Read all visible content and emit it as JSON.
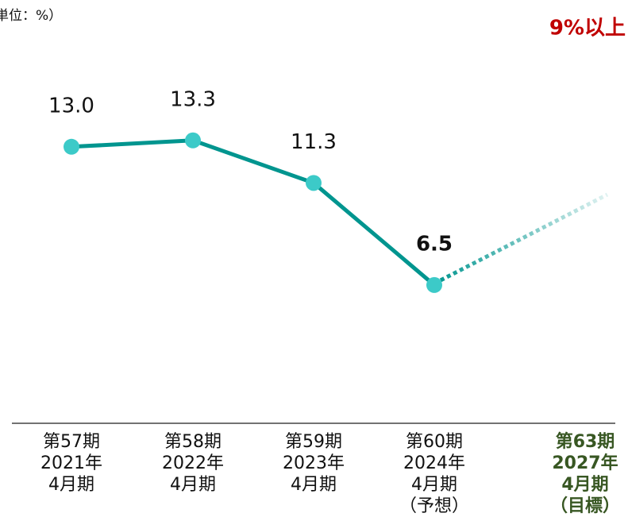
{
  "chart_data": {
    "type": "line",
    "unit_label": "単位：%）",
    "target_label": "9%以上",
    "categories": [
      [
        "第57期",
        "2021年",
        "4月期"
      ],
      [
        "第58期",
        "2022年",
        "4月期"
      ],
      [
        "第59期",
        "2023年",
        "4月期"
      ],
      [
        "第60期",
        "2024年",
        "4月期",
        "（予想）"
      ],
      [
        "第63期",
        "2027年",
        "4月期",
        "（目標）"
      ]
    ],
    "series": [
      {
        "name": null,
        "color": "#00958f",
        "values": [
          13.0,
          13.3,
          11.3,
          6.5,
          null
        ],
        "value_labels": [
          "13.0",
          "13.3",
          "11.3",
          "6.5",
          null
        ]
      }
    ],
    "ylim": [
      0,
      19.9
    ]
  }
}
